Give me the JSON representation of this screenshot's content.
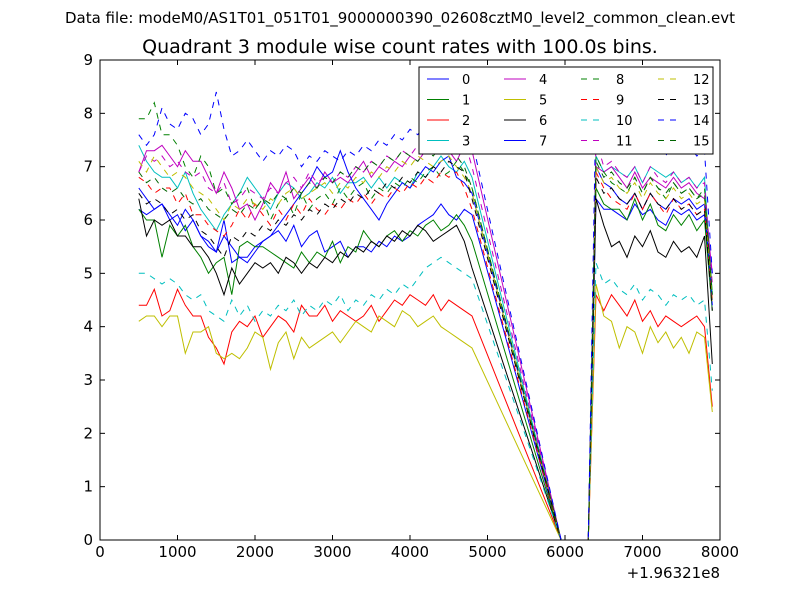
{
  "figure": {
    "suptitle": "Data file: modeM0/AS1T01_051T01_9000000390_02608cztM0_level2_common_clean.evt",
    "title": "Quadrant 3 module wise count rates with 100.0s bins."
  },
  "chart_data": {
    "type": "line",
    "title": "Quadrant 3 module wise count rates with 100.0s bins.",
    "xlabel": "",
    "ylabel": "",
    "x_offset_label": "+1.96321e8",
    "xlim": [
      0,
      8000
    ],
    "ylim": [
      0,
      9
    ],
    "x_ticks": [
      0,
      1000,
      2000,
      3000,
      4000,
      5000,
      6000,
      7000,
      8000
    ],
    "x_tick_labels": [
      "0",
      "1000",
      "2000",
      "3000",
      "4000",
      "5000",
      "6000",
      "7000",
      "8000"
    ],
    "y_ticks": [
      0,
      1,
      2,
      3,
      4,
      5,
      6,
      7,
      8,
      9
    ],
    "y_tick_labels": [
      "0",
      "1",
      "2",
      "3",
      "4",
      "5",
      "6",
      "7",
      "8",
      "9"
    ],
    "grid": false,
    "legend_position": "top-right",
    "legend_columns": 4,
    "x_start": 500,
    "x_step": 100,
    "gap": [
      5950,
      6300
    ],
    "series": [
      {
        "name": "0",
        "color": "#0000ff",
        "style": "solid",
        "seg1": [
          6.2,
          6.1,
          6.2,
          6.3,
          6.0,
          6.1,
          5.8,
          6.0,
          5.7,
          5.5,
          5.4,
          6.0,
          5.2,
          5.3,
          5.3,
          5.5,
          5.6,
          5.7,
          5.8,
          5.6,
          5.9,
          5.5,
          5.7,
          5.8,
          5.4,
          5.5,
          5.6,
          5.3,
          5.5,
          5.5,
          5.4,
          5.6,
          5.5,
          5.7,
          5.6,
          5.7,
          5.9,
          6.0,
          6.1,
          6.3,
          6.1,
          6.0,
          6.2,
          6.1
        ],
        "seg2": [
          6.4,
          6.2,
          6.2,
          6.1,
          6.0,
          6.3,
          6.1,
          6.2,
          6.0,
          5.9,
          6.2,
          6.1,
          6.2,
          6.0,
          6.1,
          4.5
        ]
      },
      {
        "name": "1",
        "color": "#008000",
        "style": "solid",
        "seg1": [
          6.2,
          6.0,
          6.0,
          5.3,
          5.9,
          5.7,
          5.9,
          5.5,
          5.3,
          5.0,
          5.2,
          5.3,
          4.6,
          5.5,
          5.6,
          5.5,
          5.5,
          5.4,
          5.3,
          5.2,
          5.1,
          5.4,
          5.2,
          5.4,
          5.3,
          5.6,
          5.2,
          5.5,
          5.4,
          5.8,
          5.6,
          5.5,
          5.7,
          5.8,
          5.6,
          5.8,
          5.7,
          5.9,
          6.0,
          5.8,
          5.9,
          6.1,
          5.9,
          5.6
        ],
        "seg2": [
          6.6,
          6.3,
          6.2,
          6.2,
          6.0,
          6.4,
          6.0,
          6.3,
          5.9,
          5.8,
          6.1,
          5.9,
          6.1,
          5.8,
          6.0,
          4.3
        ]
      },
      {
        "name": "2",
        "color": "#ff0000",
        "style": "solid",
        "seg1": [
          4.4,
          4.4,
          4.7,
          4.2,
          4.3,
          4.7,
          4.4,
          4.2,
          4.2,
          3.8,
          3.6,
          3.3,
          3.9,
          4.1,
          4.0,
          4.2,
          3.8,
          4.0,
          4.2,
          4.1,
          3.9,
          4.4,
          4.2,
          4.2,
          4.4,
          4.1,
          4.3,
          4.2,
          4.1,
          4.2,
          4.4,
          4.1,
          4.3,
          4.5,
          4.4,
          4.6,
          4.5,
          4.4,
          4.6,
          4.3,
          4.5,
          4.4,
          4.3,
          4.2
        ],
        "seg2": [
          4.6,
          4.3,
          4.6,
          4.4,
          4.2,
          4.5,
          4.1,
          4.3,
          4.0,
          4.2,
          4.1,
          4.0,
          4.1,
          4.2,
          4.0,
          2.5
        ]
      },
      {
        "name": "3",
        "color": "#00bfbf",
        "style": "solid",
        "seg1": [
          7.4,
          7.1,
          6.9,
          6.8,
          6.8,
          6.6,
          6.9,
          6.5,
          6.2,
          6.0,
          5.8,
          6.1,
          6.3,
          6.5,
          6.8,
          6.6,
          6.4,
          6.2,
          6.5,
          6.7,
          6.6,
          6.4,
          6.5,
          6.7,
          6.6,
          6.8,
          6.5,
          6.7,
          6.7,
          6.8,
          6.6,
          6.8,
          6.6,
          6.8,
          6.7,
          6.6,
          6.9,
          6.8,
          7.0,
          7.2,
          7.0,
          6.9,
          7.1,
          6.8
        ],
        "seg2": [
          7.2,
          6.9,
          7.0,
          6.9,
          6.8,
          7.0,
          6.7,
          7.0,
          6.9,
          6.8,
          6.9,
          6.7,
          6.8,
          6.6,
          6.8,
          4.6
        ]
      },
      {
        "name": "4",
        "color": "#bf00bf",
        "style": "solid",
        "seg1": [
          6.9,
          7.3,
          7.3,
          7.4,
          7.2,
          7.0,
          7.3,
          7.1,
          7.1,
          6.8,
          6.5,
          6.9,
          6.6,
          6.2,
          6.3,
          6.0,
          6.3,
          6.7,
          6.5,
          6.9,
          6.4,
          6.6,
          6.8,
          6.6,
          6.9,
          6.7,
          6.8,
          6.7,
          6.9,
          7.1,
          6.8,
          7.0,
          6.9,
          7.1,
          7.0,
          7.2,
          7.1,
          7.3,
          7.4,
          7.6,
          7.3,
          7.1,
          7.4,
          7.3
        ],
        "seg2": [
          7.0,
          6.9,
          7.0,
          6.8,
          6.6,
          6.9,
          6.6,
          6.8,
          6.7,
          6.6,
          6.8,
          6.6,
          6.7,
          6.5,
          6.4,
          5.0
        ]
      },
      {
        "name": "5",
        "color": "#bfbf00",
        "style": "solid",
        "seg1": [
          4.1,
          4.2,
          4.2,
          4.0,
          4.2,
          4.2,
          3.5,
          3.9,
          3.9,
          4.0,
          3.5,
          3.4,
          3.5,
          3.4,
          3.6,
          3.9,
          3.8,
          3.2,
          3.7,
          3.9,
          3.4,
          3.8,
          3.6,
          3.7,
          3.8,
          3.9,
          3.7,
          3.9,
          4.1,
          4.0,
          3.9,
          4.2,
          4.1,
          4.0,
          4.3,
          4.2,
          4.0,
          4.1,
          4.2,
          4.0,
          3.9,
          3.8,
          3.7,
          3.6
        ],
        "seg2": [
          4.8,
          4.2,
          4.1,
          3.6,
          4.0,
          3.9,
          3.5,
          4.0,
          3.7,
          3.9,
          3.6,
          3.8,
          3.5,
          3.9,
          3.8,
          2.4
        ]
      },
      {
        "name": "6",
        "color": "#000000",
        "style": "solid",
        "seg1": [
          6.4,
          5.7,
          6.0,
          5.9,
          6.0,
          5.7,
          5.7,
          5.5,
          5.5,
          5.3,
          5.0,
          4.6,
          5.1,
          4.8,
          5.0,
          5.2,
          5.1,
          5.2,
          5.0,
          5.3,
          5.2,
          5.0,
          5.2,
          5.1,
          5.3,
          5.2,
          5.4,
          5.3,
          5.5,
          5.4,
          5.6,
          5.5,
          5.7,
          5.6,
          5.8,
          5.7,
          5.9,
          5.8,
          5.6,
          5.7,
          5.8,
          5.9,
          5.6,
          5.1
        ],
        "seg2": [
          6.4,
          5.9,
          5.5,
          5.6,
          5.3,
          5.7,
          5.5,
          5.8,
          5.4,
          5.3,
          5.6,
          5.4,
          5.5,
          5.3,
          5.7,
          3.3
        ]
      },
      {
        "name": "7",
        "color": "#0000ff",
        "style": "solid",
        "seg1": [
          6.6,
          6.4,
          6.2,
          6.3,
          6.1,
          5.9,
          6.2,
          6.0,
          5.7,
          5.6,
          5.4,
          5.7,
          5.5,
          5.3,
          5.2,
          5.4,
          5.6,
          5.7,
          5.9,
          6.1,
          6.3,
          6.5,
          6.7,
          7.0,
          6.8,
          6.9,
          7.3,
          6.9,
          6.6,
          6.4,
          6.2,
          6.0,
          6.3,
          6.5,
          6.7,
          6.6,
          6.8,
          7.0,
          6.9,
          7.1,
          7.2,
          6.8,
          6.7,
          6.5
        ],
        "seg2": [
          7.0,
          6.7,
          6.6,
          6.4,
          6.3,
          6.5,
          6.2,
          6.5,
          6.3,
          6.2,
          6.4,
          6.3,
          6.4,
          6.2,
          6.3,
          4.4
        ]
      },
      {
        "name": "8",
        "color": "#008000",
        "style": "dashed",
        "seg1": [
          7.9,
          7.9,
          8.2,
          7.6,
          7.6,
          7.4,
          7.0,
          6.8,
          7.2,
          7.0,
          6.5,
          6.6,
          6.3,
          6.5,
          6.6,
          6.2,
          6.4,
          6.0,
          6.3,
          6.4,
          6.1,
          6.5,
          6.2,
          6.4,
          6.5,
          6.3,
          6.6,
          6.4,
          6.6,
          6.7,
          6.4,
          6.6,
          6.5,
          6.7,
          6.6,
          6.8,
          6.7,
          6.9,
          7.0,
          6.8,
          6.9,
          7.1,
          6.9,
          6.6
        ],
        "seg2": [
          7.2,
          6.9,
          6.7,
          6.6,
          6.5,
          6.8,
          6.5,
          6.8,
          6.6,
          6.4,
          6.7,
          6.5,
          6.6,
          6.4,
          6.6,
          4.6
        ]
      },
      {
        "name": "9",
        "color": "#ff0000",
        "style": "dashed",
        "seg1": [
          6.8,
          6.7,
          6.5,
          6.6,
          6.6,
          6.3,
          6.5,
          6.1,
          6.1,
          5.9,
          5.8,
          5.7,
          5.9,
          6.2,
          6.0,
          6.3,
          6.1,
          5.9,
          6.2,
          6.0,
          6.3,
          6.1,
          6.4,
          6.2,
          6.1,
          6.3,
          6.2,
          6.4,
          6.3,
          6.5,
          6.3,
          6.5,
          6.4,
          6.6,
          6.5,
          6.7,
          6.6,
          6.8,
          6.7,
          6.9,
          6.8,
          6.9,
          6.6,
          6.2
        ],
        "seg2": [
          6.9,
          6.6,
          6.4,
          6.3,
          6.2,
          6.5,
          6.2,
          6.5,
          6.3,
          6.1,
          6.4,
          6.2,
          6.3,
          6.1,
          6.2,
          4.5
        ]
      },
      {
        "name": "10",
        "color": "#00bfbf",
        "style": "dashed",
        "seg1": [
          5.0,
          5.0,
          4.9,
          4.8,
          4.9,
          4.8,
          4.6,
          4.5,
          4.6,
          4.3,
          4.2,
          4.1,
          4.5,
          4.2,
          4.4,
          4.1,
          4.3,
          4.2,
          4.4,
          4.3,
          4.5,
          4.2,
          4.4,
          4.3,
          4.5,
          4.4,
          4.6,
          4.3,
          4.5,
          4.4,
          4.6,
          4.5,
          4.7,
          4.6,
          4.8,
          4.7,
          4.9,
          5.1,
          5.2,
          5.3,
          5.2,
          5.1,
          5.0,
          4.9
        ],
        "seg2": [
          5.2,
          4.8,
          4.9,
          4.7,
          4.6,
          4.8,
          4.5,
          4.7,
          4.6,
          4.4,
          4.6,
          4.5,
          4.6,
          4.4,
          4.5,
          2.8
        ]
      },
      {
        "name": "11",
        "color": "#bf00bf",
        "style": "dashed",
        "seg1": [
          6.9,
          7.2,
          7.1,
          7.2,
          7.0,
          7.1,
          6.9,
          6.8,
          6.9,
          6.6,
          6.5,
          6.7,
          6.3,
          6.4,
          6.6,
          6.5,
          6.4,
          6.6,
          6.5,
          6.7,
          6.8,
          6.6,
          6.9,
          6.7,
          6.8,
          6.7,
          6.9,
          6.8,
          7.0,
          6.9,
          7.1,
          7.0,
          7.2,
          7.1,
          7.3,
          7.2,
          7.4,
          7.3,
          7.5,
          7.6,
          7.4,
          7.3,
          7.5,
          7.0
        ],
        "seg2": [
          7.5,
          7.0,
          7.1,
          6.9,
          6.8,
          7.0,
          6.7,
          7.0,
          6.8,
          6.7,
          6.9,
          6.7,
          6.8,
          6.6,
          6.7,
          4.8
        ]
      },
      {
        "name": "12",
        "color": "#bfbf00",
        "style": "dashed",
        "seg1": [
          7.1,
          6.9,
          7.2,
          7.0,
          6.8,
          6.9,
          6.8,
          6.6,
          6.5,
          6.4,
          6.2,
          6.0,
          6.3,
          6.2,
          6.4,
          6.3,
          6.2,
          6.4,
          6.3,
          6.5,
          6.6,
          6.4,
          6.5,
          6.6,
          6.7,
          6.5,
          6.7,
          6.6,
          6.8,
          6.7,
          6.9,
          6.8,
          7.0,
          6.9,
          7.1,
          7.0,
          7.2,
          7.1,
          7.0,
          7.1,
          7.2,
          7.0,
          6.8,
          6.5
        ],
        "seg2": [
          7.0,
          6.7,
          6.8,
          6.6,
          6.5,
          6.7,
          6.4,
          6.7,
          6.5,
          6.4,
          6.6,
          6.4,
          6.5,
          6.3,
          6.4,
          4.4
        ]
      },
      {
        "name": "13",
        "color": "#000000",
        "style": "dashed",
        "seg1": [
          6.5,
          6.3,
          6.4,
          6.3,
          6.1,
          6.2,
          6.0,
          6.1,
          5.8,
          5.7,
          5.5,
          5.3,
          5.7,
          5.6,
          5.8,
          5.7,
          5.9,
          5.8,
          6.0,
          5.9,
          6.1,
          6.0,
          6.2,
          6.1,
          6.3,
          6.2,
          6.4,
          6.3,
          6.5,
          6.4,
          6.6,
          6.5,
          6.7,
          6.6,
          6.8,
          6.7,
          6.9,
          6.8,
          7.0,
          6.9,
          7.1,
          7.0,
          6.9,
          6.4
        ],
        "seg2": [
          6.8,
          6.5,
          6.6,
          6.4,
          6.3,
          6.5,
          6.2,
          6.5,
          6.3,
          6.2,
          6.4,
          6.2,
          6.3,
          6.1,
          6.2,
          4.3
        ]
      },
      {
        "name": "14",
        "color": "#0000ff",
        "style": "dashed",
        "seg1": [
          7.6,
          7.4,
          7.6,
          8.1,
          7.8,
          7.7,
          8.0,
          7.9,
          7.6,
          7.8,
          8.4,
          7.7,
          7.2,
          7.3,
          7.5,
          7.3,
          7.1,
          7.3,
          7.2,
          7.4,
          7.3,
          7.0,
          7.2,
          7.1,
          7.3,
          7.2,
          7.1,
          7.3,
          7.2,
          7.4,
          7.3,
          7.5,
          7.4,
          7.6,
          7.5,
          7.7,
          7.6,
          7.8,
          7.9,
          8.2,
          8.0,
          7.8,
          7.9,
          7.5
        ],
        "seg2": [
          8.3,
          7.8,
          7.7,
          7.5,
          7.4,
          7.6,
          7.3,
          7.6,
          7.4,
          7.2,
          7.5,
          7.3,
          7.4,
          7.2,
          7.3,
          5.0
        ]
      },
      {
        "name": "15",
        "color": "#006400",
        "style": "dashed",
        "seg1": [
          6.9,
          6.7,
          6.8,
          6.6,
          6.5,
          6.6,
          6.4,
          6.3,
          6.4,
          6.2,
          6.1,
          6.0,
          6.2,
          6.1,
          6.3,
          6.2,
          6.4,
          6.3,
          6.5,
          6.4,
          6.6,
          6.5,
          6.7,
          6.6,
          6.8,
          6.7,
          6.9,
          6.8,
          7.0,
          6.9,
          7.1,
          7.0,
          7.2,
          7.1,
          7.3,
          7.2,
          7.1,
          7.3,
          7.2,
          7.4,
          7.3,
          7.2,
          7.0,
          6.6
        ],
        "seg2": [
          7.1,
          6.8,
          6.9,
          6.7,
          6.6,
          6.8,
          6.5,
          6.8,
          6.6,
          6.5,
          6.7,
          6.5,
          6.6,
          6.4,
          6.5,
          4.6
        ]
      }
    ]
  }
}
